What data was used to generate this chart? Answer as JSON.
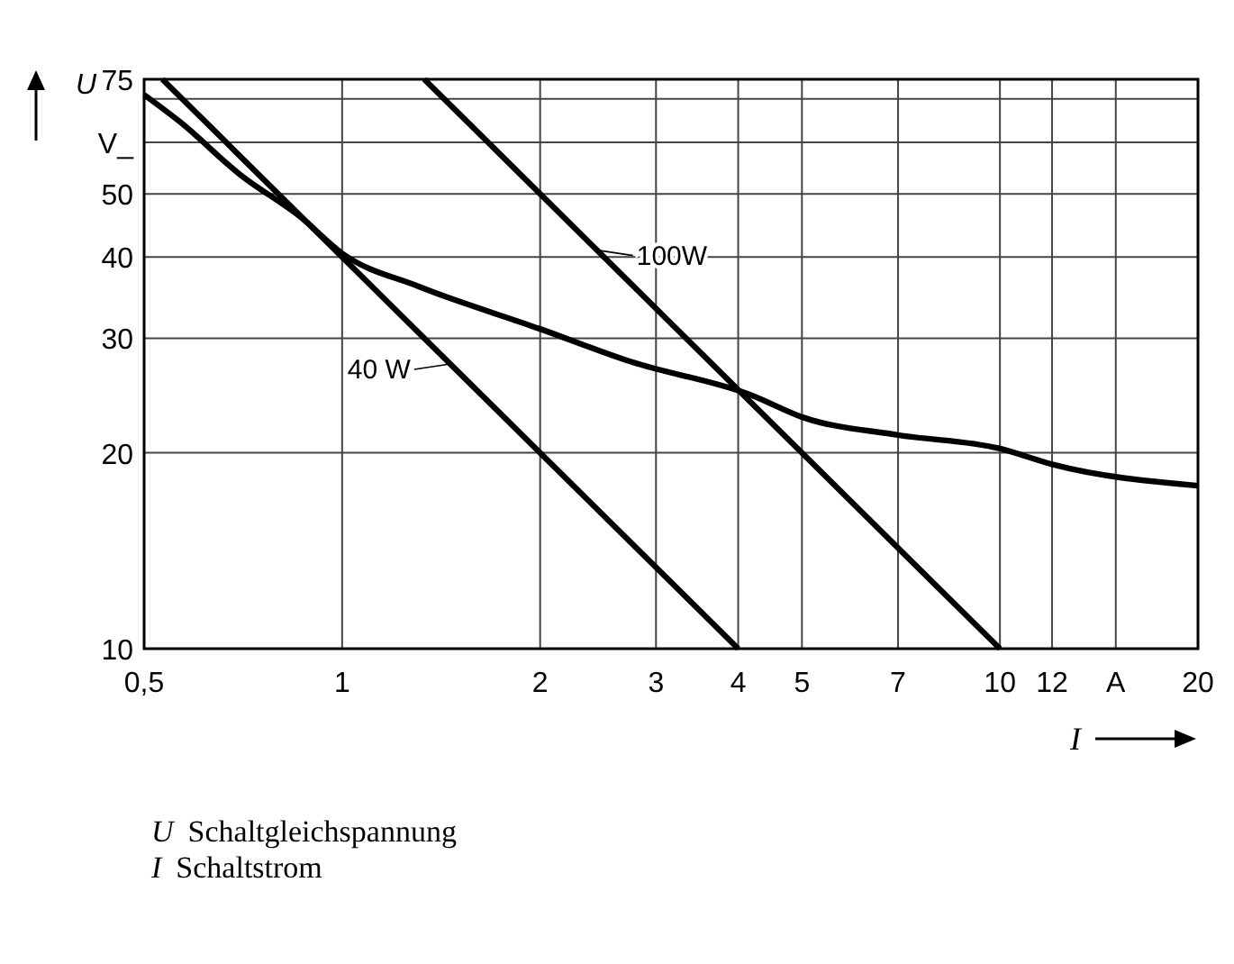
{
  "chart_data": {
    "type": "line",
    "xlabel": "I",
    "ylabel": "U",
    "log": "xy",
    "grid": true,
    "marker": "none",
    "line_style": "solid",
    "xlim": [
      0.5,
      20
    ],
    "ylim": [
      10,
      75
    ],
    "xticks": [
      {
        "value": 0.5,
        "label": "0,5"
      },
      1,
      2,
      3,
      4,
      5,
      7,
      10,
      12,
      {
        "value": 15,
        "label": "A"
      },
      20
    ],
    "yticks": [
      10,
      20,
      30,
      40,
      50,
      {
        "value": 60,
        "label": "V_"
      },
      {
        "value": 70,
        "label": null
      },
      75
    ],
    "series": [
      {
        "name": "40 W",
        "color": "#000000",
        "x": [
          0.533,
          4
        ],
        "values": [
          75,
          10
        ]
      },
      {
        "name": "100W",
        "color": "#000000",
        "x": [
          1.333,
          10
        ],
        "values": [
          75,
          10
        ]
      },
      {
        "color": "#000000",
        "x": [
          0.5,
          0.567,
          0.7,
          0.866,
          1,
          1.31,
          2,
          2.75,
          4.2,
          5,
          7,
          10,
          12,
          20
        ],
        "values": [
          71,
          64.5,
          53.5,
          46,
          40.5,
          36,
          31,
          27.6,
          24.5,
          22.7,
          21.3,
          20.3,
          19.2,
          17.8
        ]
      }
    ],
    "annotations": [
      "U Schaltgleichspannung",
      "I Schaltstrom"
    ]
  }
}
